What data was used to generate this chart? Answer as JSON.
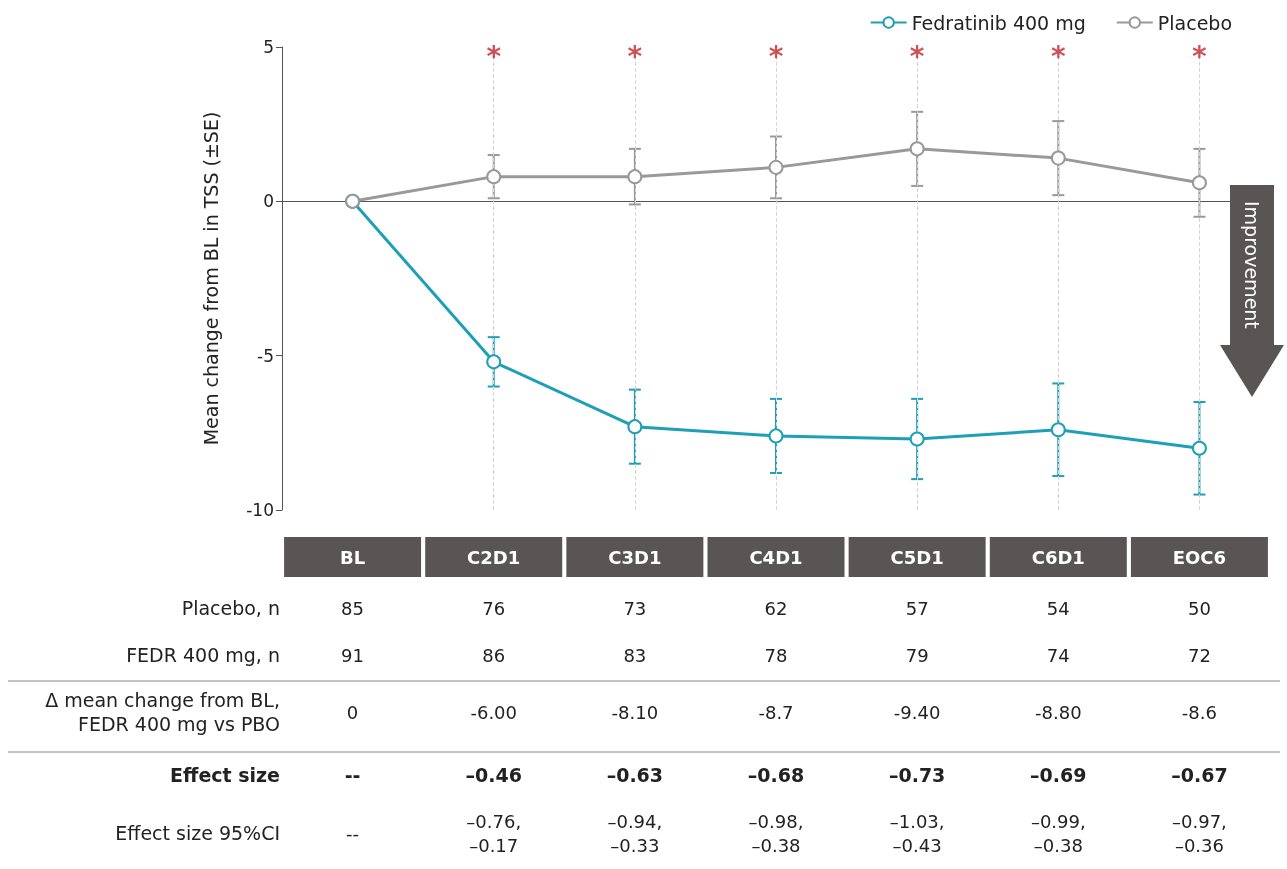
{
  "chart_data": {
    "type": "line",
    "ylabel": "Mean change from BL in TSS (±SE)",
    "categories": [
      "BL",
      "C2D1",
      "C3D1",
      "C4D1",
      "C5D1",
      "C6D1",
      "EOC6"
    ],
    "series": [
      {
        "name": "Fedratinib 400 mg",
        "color": "#1f9fb5",
        "values": [
          0,
          -5.2,
          -7.3,
          -7.6,
          -7.7,
          -7.4,
          -8.0
        ],
        "errors": [
          null,
          0.8,
          1.2,
          1.2,
          1.3,
          1.5,
          1.5
        ]
      },
      {
        "name": "Placebo",
        "color": "#999999",
        "values": [
          0,
          0.8,
          0.8,
          1.1,
          1.7,
          1.4,
          0.6
        ],
        "errors": [
          null,
          0.7,
          0.9,
          1.0,
          1.2,
          1.2,
          1.1
        ]
      }
    ],
    "ylim": [
      -10,
      5
    ],
    "yticks": [
      -10,
      -5,
      0,
      5
    ],
    "grid": false,
    "legend": "top right",
    "marker": "circle",
    "line_style": "solid",
    "ref_lines": [
      {
        "axis": "x",
        "value": "C2D1",
        "line_style": "dashed",
        "color": "#d4d4d4"
      },
      {
        "axis": "x",
        "value": "C3D1",
        "line_style": "dashed",
        "color": "#d4d4d4"
      },
      {
        "axis": "x",
        "value": "C4D1",
        "line_style": "dashed",
        "color": "#d4d4d4"
      },
      {
        "axis": "x",
        "value": "C5D1",
        "line_style": "dashed",
        "color": "#d4d4d4"
      },
      {
        "axis": "x",
        "value": "C6D1",
        "line_style": "dashed",
        "color": "#d4d4d4"
      },
      {
        "axis": "x",
        "value": "EOC6",
        "line_style": "dashed",
        "color": "#d4d4d4"
      }
    ],
    "annotations": [
      "Improvement",
      {
        "text": "*",
        "x": "C2D1",
        "y": 4.7
      },
      {
        "text": "*",
        "x": "C3D1",
        "y": 4.7
      },
      {
        "text": "*",
        "x": "C4D1",
        "y": 4.7
      },
      {
        "text": "*",
        "x": "C5D1",
        "y": 4.7
      },
      {
        "text": "*",
        "x": "C6D1",
        "y": 4.7
      },
      {
        "text": "*",
        "x": "EOC6",
        "y": 4.7
      },
      "Placebo, n",
      "85",
      "76",
      "73",
      "62",
      "57",
      "54",
      "50",
      "FEDR 400 mg, n",
      "91",
      "86",
      "83",
      "78",
      "79",
      "74",
      "72",
      "Δ mean change from BL,\nFEDR 400 mg vs PBO",
      "0",
      "-6.00",
      "-8.10",
      "-8.7",
      "-9.40",
      "-8.80",
      "-8.6",
      "Effect size",
      "--",
      "–0.46",
      "–0.63",
      "–0.68",
      "–0.73",
      "–0.69",
      "–0.67",
      "Effect size 95%CI",
      "--",
      "–0.76,\n–0.17",
      "–0.94,\n–0.33",
      "–0.98,\n–0.38",
      "–1.03,\n–0.43",
      "–0.99,\n–0.38",
      "–0.97,\n–0.36"
    ]
  }
}
